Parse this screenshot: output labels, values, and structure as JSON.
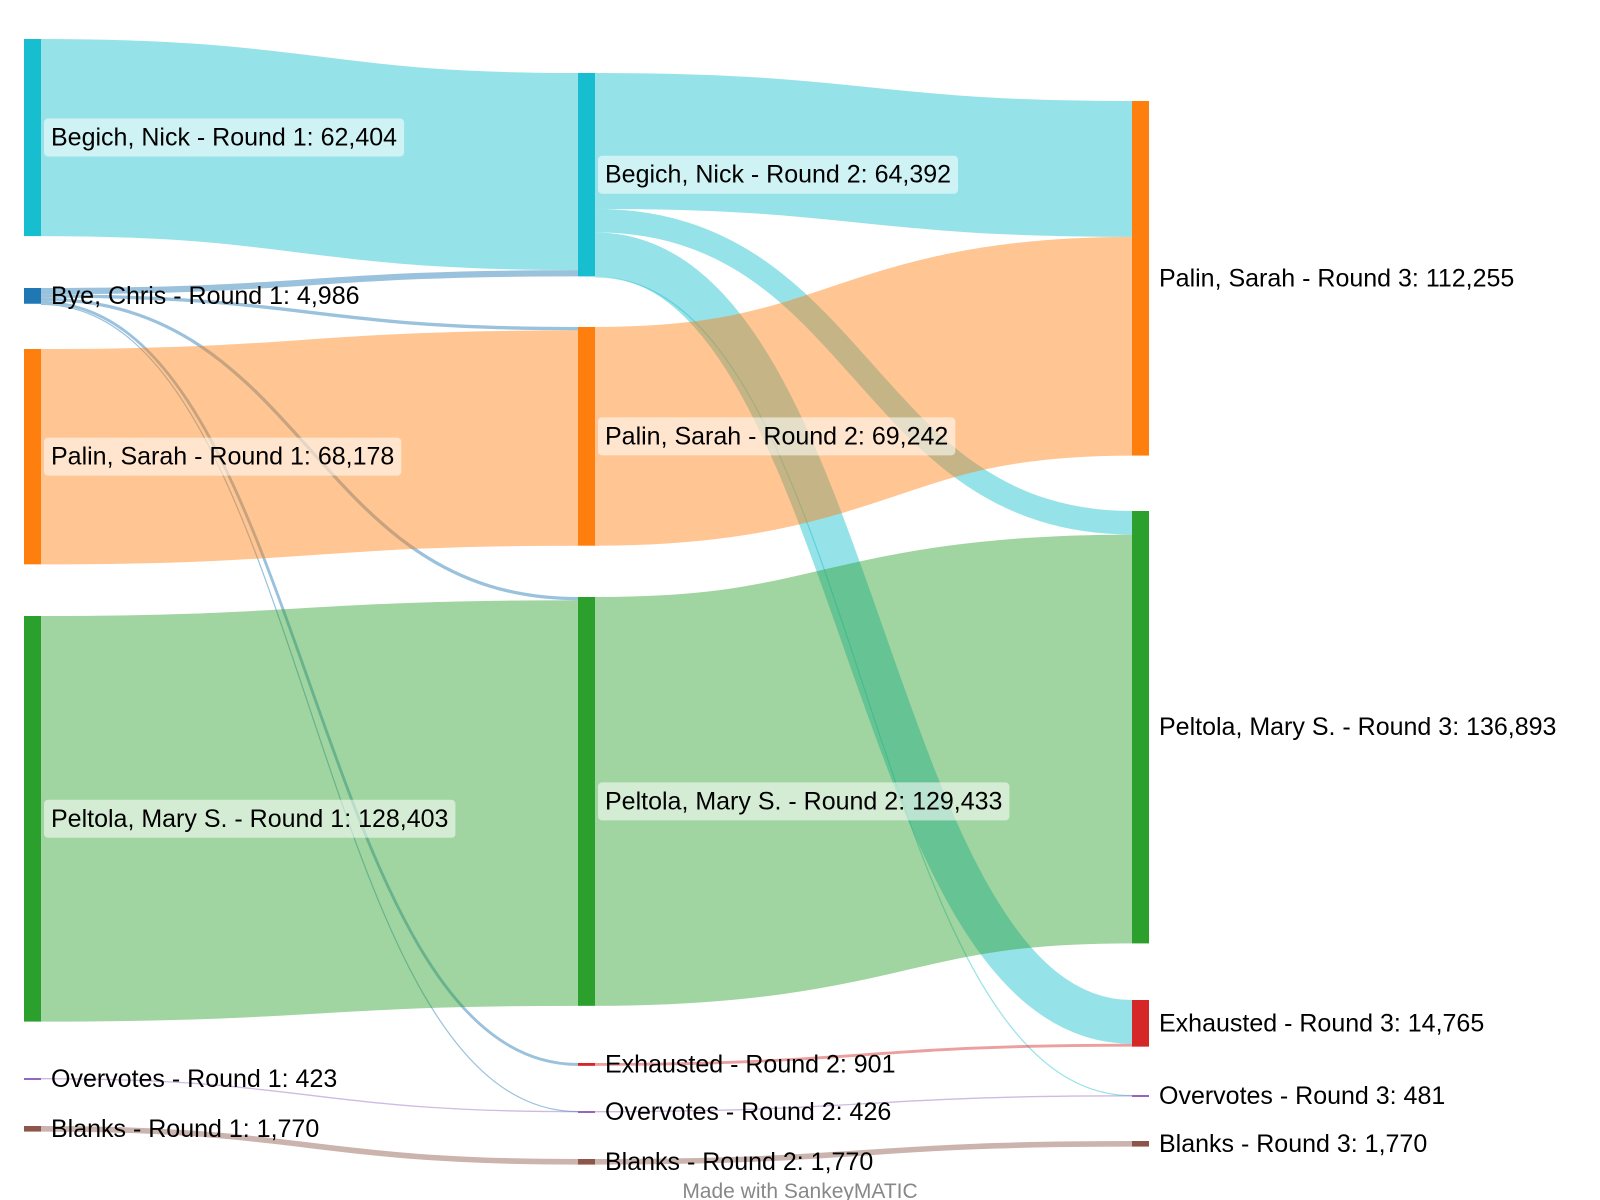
{
  "credit": "Made with SankeyMATIC",
  "colors": {
    "begich": "#17becf",
    "bye": "#1f77b4",
    "palin": "#ff7f0e",
    "peltola": "#2ca02c",
    "exhausted": "#d62728",
    "overvotes": "#9467bd",
    "blanks": "#8c564b"
  },
  "nodes": [
    {
      "id": "begich1",
      "label": "Begich, Nick - Round 1: 62,404",
      "value": 62404,
      "color": "begich"
    },
    {
      "id": "bye1",
      "label": "Bye, Chris - Round 1: 4,986",
      "value": 4986,
      "color": "bye"
    },
    {
      "id": "palin1",
      "label": "Palin, Sarah - Round 1: 68,178",
      "value": 68178,
      "color": "palin"
    },
    {
      "id": "peltola1",
      "label": "Peltola, Mary S. - Round 1: 128,403",
      "value": 128403,
      "color": "peltola"
    },
    {
      "id": "over1",
      "label": "Overvotes - Round 1: 423",
      "value": 423,
      "color": "overvotes"
    },
    {
      "id": "blanks1",
      "label": "Blanks - Round 1: 1,770",
      "value": 1770,
      "color": "blanks"
    },
    {
      "id": "begich2",
      "label": "Begich, Nick - Round 2: 64,392",
      "value": 64392,
      "color": "begich"
    },
    {
      "id": "palin2",
      "label": "Palin, Sarah - Round 2: 69,242",
      "value": 69242,
      "color": "palin"
    },
    {
      "id": "peltola2",
      "label": "Peltola, Mary S. - Round 2: 129,433",
      "value": 129433,
      "color": "peltola"
    },
    {
      "id": "exh2",
      "label": "Exhausted - Round 2: 901",
      "value": 901,
      "color": "exhausted"
    },
    {
      "id": "over2",
      "label": "Overvotes - Round 2: 426",
      "value": 426,
      "color": "overvotes"
    },
    {
      "id": "blanks2",
      "label": "Blanks - Round 2: 1,770",
      "value": 1770,
      "color": "blanks"
    },
    {
      "id": "palin3",
      "label": "Palin, Sarah - Round 3: 112,255",
      "value": 112255,
      "color": "palin"
    },
    {
      "id": "peltola3",
      "label": "Peltola, Mary S. - Round 3: 136,893",
      "value": 136893,
      "color": "peltola"
    },
    {
      "id": "exh3",
      "label": "Exhausted - Round 3: 14,765",
      "value": 14765,
      "color": "exhausted"
    },
    {
      "id": "over3",
      "label": "Overvotes - Round 3: 481",
      "value": 481,
      "color": "overvotes"
    },
    {
      "id": "blanks3",
      "label": "Blanks - Round 3: 1,770",
      "value": 1770,
      "color": "blanks"
    }
  ],
  "links": [
    {
      "source": "begich1",
      "target": "begich2",
      "value": 62404
    },
    {
      "source": "bye1",
      "target": "begich2",
      "value": 1988
    },
    {
      "source": "bye1",
      "target": "palin2",
      "value": 1064
    },
    {
      "source": "bye1",
      "target": "peltola2",
      "value": 1030
    },
    {
      "source": "bye1",
      "target": "exh2",
      "value": 901
    },
    {
      "source": "bye1",
      "target": "over2",
      "value": 3
    },
    {
      "source": "palin1",
      "target": "palin2",
      "value": 68178
    },
    {
      "source": "peltola1",
      "target": "peltola2",
      "value": 128403
    },
    {
      "source": "over1",
      "target": "over2",
      "value": 423
    },
    {
      "source": "blanks1",
      "target": "blanks2",
      "value": 1770
    },
    {
      "source": "begich2",
      "target": "palin3",
      "value": 43013
    },
    {
      "source": "begich2",
      "target": "peltola3",
      "value": 7460
    },
    {
      "source": "begich2",
      "target": "exh3",
      "value": 13864
    },
    {
      "source": "begich2",
      "target": "over3",
      "value": 55
    },
    {
      "source": "palin2",
      "target": "palin3",
      "value": 69242
    },
    {
      "source": "peltola2",
      "target": "peltola3",
      "value": 129433
    },
    {
      "source": "exh2",
      "target": "exh3",
      "value": 901
    },
    {
      "source": "over2",
      "target": "over3",
      "value": 426
    },
    {
      "source": "blanks2",
      "target": "blanks3",
      "value": 1770
    }
  ]
}
